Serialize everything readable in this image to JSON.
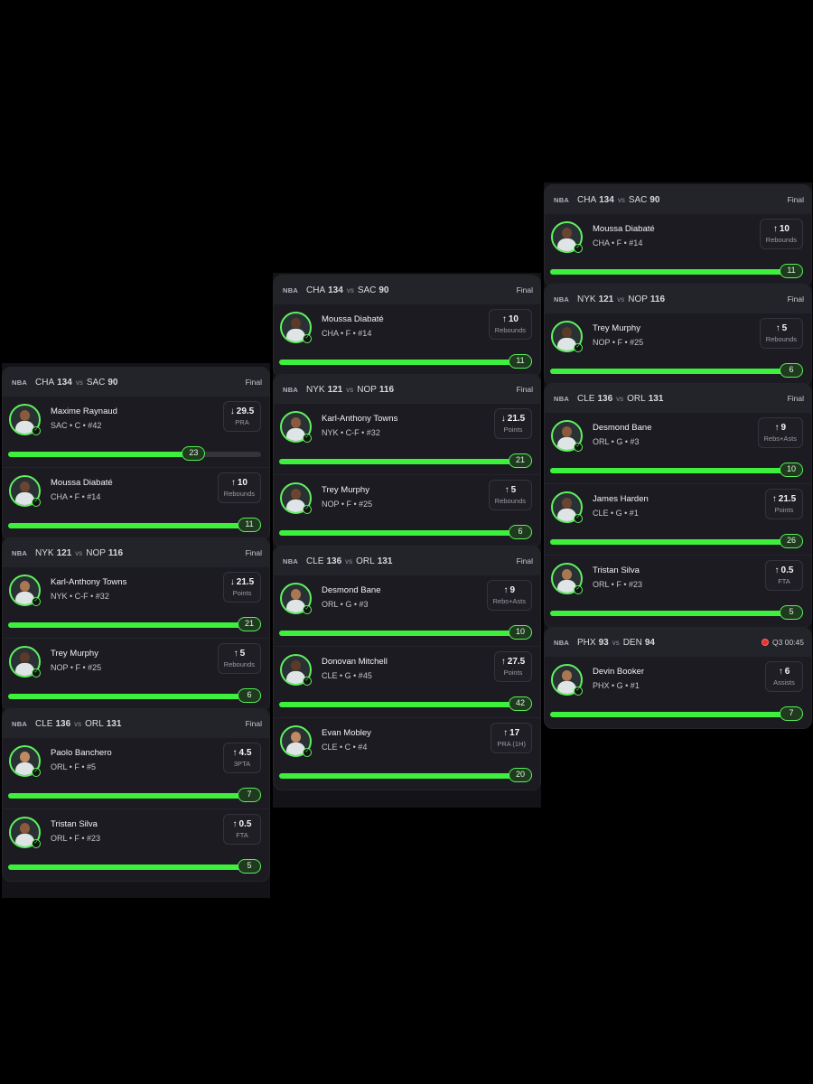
{
  "colors": {
    "accent": "#3cf03c",
    "background": "#000000",
    "card": "#1b1b21",
    "live": "#e23232"
  },
  "columns": [
    {
      "games": [
        {
          "league": "NBA",
          "home": "CHA",
          "home_score": "134",
          "vs": "vs",
          "away": "SAC",
          "away_score": "90",
          "status": "Final",
          "live": false,
          "picks": [
            {
              "name": "Maxime Raynaud",
              "info": "SAC • C • #42",
              "direction": "down",
              "line": "29.5",
              "stat": "PRA",
              "result": "23",
              "progress": 0.78
            },
            {
              "name": "Moussa Diabaté",
              "info": "CHA • F • #14",
              "direction": "up",
              "line": "10",
              "stat": "Rebounds",
              "result": "11",
              "progress": 1
            }
          ]
        },
        {
          "league": "NBA",
          "home": "NYK",
          "home_score": "121",
          "vs": "vs",
          "away": "NOP",
          "away_score": "116",
          "status": "Final",
          "live": false,
          "picks": [
            {
              "name": "Karl-Anthony Towns",
              "info": "NYK • C-F • #32",
              "direction": "down",
              "line": "21.5",
              "stat": "Points",
              "result": "21",
              "progress": 1
            },
            {
              "name": "Trey Murphy",
              "info": "NOP • F • #25",
              "direction": "up",
              "line": "5",
              "stat": "Rebounds",
              "result": "6",
              "progress": 1
            }
          ]
        },
        {
          "league": "NBA",
          "home": "CLE",
          "home_score": "136",
          "vs": "vs",
          "away": "ORL",
          "away_score": "131",
          "status": "Final",
          "live": false,
          "picks": [
            {
              "name": "Paolo Banchero",
              "info": "ORL • F • #5",
              "direction": "up",
              "line": "4.5",
              "stat": "3PTA",
              "result": "7",
              "progress": 1
            },
            {
              "name": "Tristan Silva",
              "info": "ORL • F • #23",
              "direction": "up",
              "line": "0.5",
              "stat": "FTA",
              "result": "5",
              "progress": 1
            }
          ]
        }
      ]
    },
    {
      "games": [
        {
          "league": "NBA",
          "home": "CHA",
          "home_score": "134",
          "vs": "vs",
          "away": "SAC",
          "away_score": "90",
          "status": "Final",
          "live": false,
          "picks": [
            {
              "name": "Moussa Diabaté",
              "info": "CHA • F • #14",
              "direction": "up",
              "line": "10",
              "stat": "Rebounds",
              "result": "11",
              "progress": 1
            }
          ]
        },
        {
          "league": "NBA",
          "home": "NYK",
          "home_score": "121",
          "vs": "vs",
          "away": "NOP",
          "away_score": "116",
          "status": "Final",
          "live": false,
          "picks": [
            {
              "name": "Karl-Anthony Towns",
              "info": "NYK • C-F • #32",
              "direction": "down",
              "line": "21.5",
              "stat": "Points",
              "result": "21",
              "progress": 1
            },
            {
              "name": "Trey Murphy",
              "info": "NOP • F • #25",
              "direction": "up",
              "line": "5",
              "stat": "Rebounds",
              "result": "6",
              "progress": 1
            }
          ]
        },
        {
          "league": "NBA",
          "home": "CLE",
          "home_score": "136",
          "vs": "vs",
          "away": "ORL",
          "away_score": "131",
          "status": "Final",
          "live": false,
          "picks": [
            {
              "name": "Desmond Bane",
              "info": "ORL • G • #3",
              "direction": "up",
              "line": "9",
              "stat": "Rebs+Asts",
              "result": "10",
              "progress": 1
            },
            {
              "name": "Donovan Mitchell",
              "info": "CLE • G • #45",
              "direction": "up",
              "line": "27.5",
              "stat": "Points",
              "result": "42",
              "progress": 1
            },
            {
              "name": "Evan Mobley",
              "info": "CLE • C • #4",
              "direction": "up",
              "line": "17",
              "stat": "PRA (1H)",
              "result": "20",
              "progress": 1
            }
          ]
        }
      ]
    },
    {
      "games": [
        {
          "league": "NBA",
          "home": "CHA",
          "home_score": "134",
          "vs": "vs",
          "away": "SAC",
          "away_score": "90",
          "status": "Final",
          "live": false,
          "picks": [
            {
              "name": "Moussa Diabaté",
              "info": "CHA • F • #14",
              "direction": "up",
              "line": "10",
              "stat": "Rebounds",
              "result": "11",
              "progress": 1
            }
          ]
        },
        {
          "league": "NBA",
          "home": "NYK",
          "home_score": "121",
          "vs": "vs",
          "away": "NOP",
          "away_score": "116",
          "status": "Final",
          "live": false,
          "picks": [
            {
              "name": "Trey Murphy",
              "info": "NOP • F • #25",
              "direction": "up",
              "line": "5",
              "stat": "Rebounds",
              "result": "6",
              "progress": 1
            }
          ]
        },
        {
          "league": "NBA",
          "home": "CLE",
          "home_score": "136",
          "vs": "vs",
          "away": "ORL",
          "away_score": "131",
          "status": "Final",
          "live": false,
          "picks": [
            {
              "name": "Desmond Bane",
              "info": "ORL • G • #3",
              "direction": "up",
              "line": "9",
              "stat": "Rebs+Asts",
              "result": "10",
              "progress": 1
            },
            {
              "name": "James Harden",
              "info": "CLE • G • #1",
              "direction": "up",
              "line": "21.5",
              "stat": "Points",
              "result": "26",
              "progress": 1
            },
            {
              "name": "Tristan Silva",
              "info": "ORL • F • #23",
              "direction": "up",
              "line": "0.5",
              "stat": "FTA",
              "result": "5",
              "progress": 1
            }
          ]
        },
        {
          "league": "NBA",
          "home": "PHX",
          "home_score": "93",
          "vs": "vs",
          "away": "DEN",
          "away_score": "94",
          "status": "Q3 00:45",
          "live": true,
          "picks": [
            {
              "name": "Devin Booker",
              "info": "PHX • G • #1",
              "direction": "up",
              "line": "6",
              "stat": "Assists",
              "result": "7",
              "progress": 1
            }
          ]
        }
      ]
    }
  ]
}
